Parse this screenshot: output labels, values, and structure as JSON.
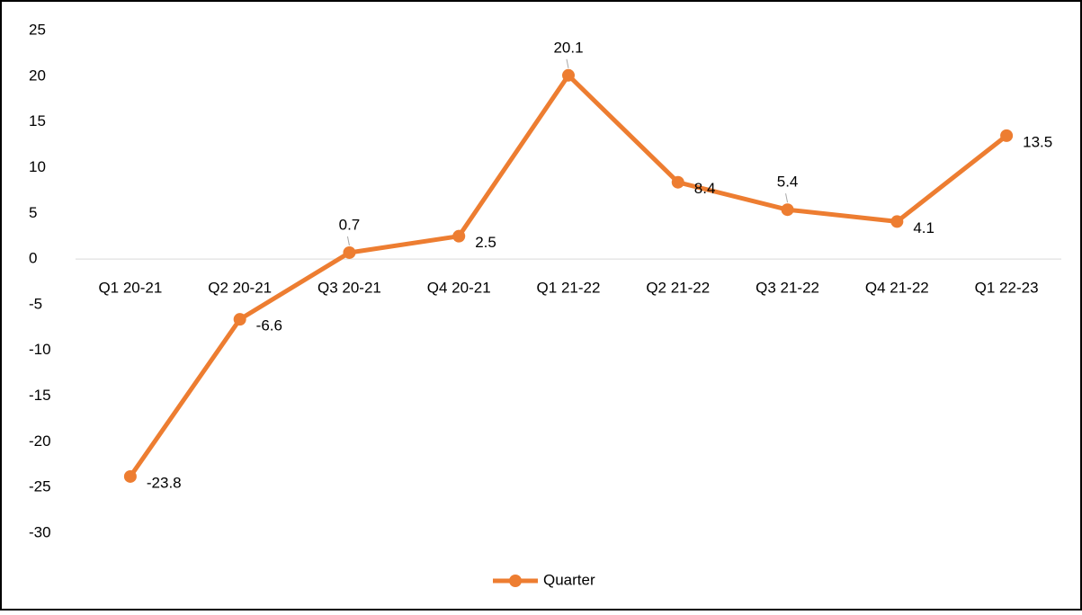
{
  "chart_data": {
    "type": "line",
    "categories": [
      "Q1 20-21",
      "Q2 20-21",
      "Q3 20-21",
      "Q4 20-21",
      "Q1 21-22",
      "Q2 21-22",
      "Q3 21-22",
      "Q4 21-22",
      "Q1 22-23"
    ],
    "series": [
      {
        "name": "Quarter",
        "color": "#ed7d31",
        "values": [
          -23.8,
          -6.6,
          0.7,
          2.5,
          20.1,
          8.4,
          5.4,
          4.1,
          13.5
        ]
      }
    ],
    "ylim": [
      -30,
      25
    ],
    "yticks": [
      -30,
      -25,
      -20,
      -15,
      -10,
      -5,
      0,
      5,
      10,
      15,
      20,
      25
    ],
    "grid": false,
    "legend": "bottom"
  }
}
